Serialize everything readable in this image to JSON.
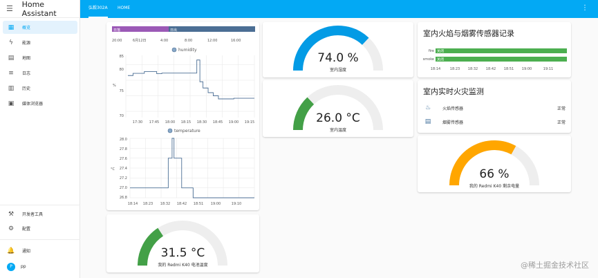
{
  "app": {
    "title": "Home Assistant",
    "user_initial": "P",
    "user_name": "pp"
  },
  "sidebar": {
    "items": [
      {
        "label": "概览",
        "icon": "view-dashboard-icon",
        "active": true
      },
      {
        "label": "能源",
        "icon": "lightning-icon",
        "active": false
      },
      {
        "label": "地图",
        "icon": "map-icon",
        "active": false
      },
      {
        "label": "日志",
        "icon": "list-icon",
        "active": false
      },
      {
        "label": "历史",
        "icon": "chart-box-icon",
        "active": false
      },
      {
        "label": "媒体浏览器",
        "icon": "media-icon",
        "active": false
      }
    ],
    "bottom": [
      {
        "label": "开发者工具",
        "icon": "hammer-icon"
      },
      {
        "label": "配置",
        "icon": "gear-icon"
      }
    ],
    "notifications_label": "通知"
  },
  "header": {
    "tabs": [
      "弘毅302A",
      "HOME"
    ],
    "active_tab": 0
  },
  "timeline": {
    "segments": [
      {
        "label": "日落",
        "color": "#9b59b6"
      },
      {
        "label": "日出",
        "color": "#4b6e94"
      }
    ],
    "ticks": [
      "20:00",
      "6月12日",
      "4:00",
      "8:00",
      "12:00",
      "16:00"
    ]
  },
  "humidity_chart": {
    "legend": "humidity",
    "ylabel": "%",
    "yticks": [
      "85",
      "80",
      "75",
      "70"
    ],
    "xticks": [
      "17:30",
      "17:45",
      "18:00",
      "18:15",
      "18:30",
      "18:45",
      "19:00",
      "19:15"
    ]
  },
  "temperature_chart": {
    "legend": "temperature",
    "ylabel": "°C",
    "yticks": [
      "28.0",
      "27.8",
      "27.6",
      "27.4",
      "27.2",
      "27.0",
      "26.8"
    ],
    "xticks": [
      "18:14",
      "18:23",
      "18:32",
      "18:42",
      "18:51",
      "19:00",
      "19:10"
    ]
  },
  "chart_data": [
    {
      "type": "line",
      "legend": "humidity",
      "ylabel": "%",
      "ylim": [
        68,
        88
      ],
      "x": [
        "17:17",
        "17:20",
        "17:22",
        "17:30",
        "17:33",
        "17:40",
        "17:45",
        "17:50",
        "18:00",
        "18:10",
        "18:15",
        "18:22",
        "18:24",
        "18:27",
        "18:30",
        "18:35",
        "18:40",
        "18:45",
        "19:00",
        "19:20"
      ],
      "series": [
        {
          "values": [
            81.5,
            81.5,
            82.2,
            82.2,
            82.8,
            82.8,
            82.1,
            82.3,
            82.3,
            82.3,
            82.3,
            82.3,
            86.5,
            79.5,
            77.5,
            76.0,
            75.0,
            74.0,
            74.2,
            74.2
          ]
        }
      ]
    },
    {
      "type": "line",
      "legend": "temperature",
      "ylabel": "°C",
      "ylim": [
        26.8,
        28.0
      ],
      "x": [
        "18:10",
        "18:28",
        "18:30",
        "18:32",
        "18:33",
        "18:36",
        "18:37",
        "18:42",
        "18:43",
        "19:15"
      ],
      "series": [
        {
          "values": [
            27.0,
            27.0,
            27.6,
            28.0,
            27.6,
            27.6,
            27.0,
            27.0,
            26.8,
            26.8
          ]
        }
      ]
    }
  ],
  "gauges": {
    "humidity": {
      "value": 74.0,
      "unit": "%",
      "display": "74.0 %",
      "name": "室内湿度",
      "color": "#039be5"
    },
    "temperature": {
      "value": 26.0,
      "unit": "°C",
      "display": "26.0 °C",
      "name": "室内温度",
      "color": "#43a047"
    },
    "phone_temp": {
      "value": 31.5,
      "unit": "°C",
      "display": "31.5 °C",
      "name": "我的 Redmi K40 电池温度",
      "color": "#43a047"
    },
    "battery": {
      "value": 66,
      "unit": "%",
      "display": "66 %",
      "name": "我的 Redmi K40 剩余电量",
      "color": "#ffa600"
    }
  },
  "fire_record": {
    "title": "室内火焰与烟雾传感器记录",
    "rows": [
      {
        "name": "fire",
        "state": "关闭",
        "color": "#4caf50"
      },
      {
        "name": "smoke",
        "state": "关闭",
        "color": "#4caf50"
      }
    ],
    "xticks": [
      "18:14",
      "18:23",
      "18:32",
      "18:42",
      "18:51",
      "19:00",
      "19:11"
    ]
  },
  "fire_monitor": {
    "title": "室内实时火灾监测",
    "rows": [
      {
        "icon": "fire-icon",
        "label": "火焰传感器",
        "state": "正常"
      },
      {
        "icon": "smoke-detector-icon",
        "label": "烟雾传感器",
        "state": "正常"
      }
    ]
  },
  "watermark": "@稀土掘金技术社区"
}
